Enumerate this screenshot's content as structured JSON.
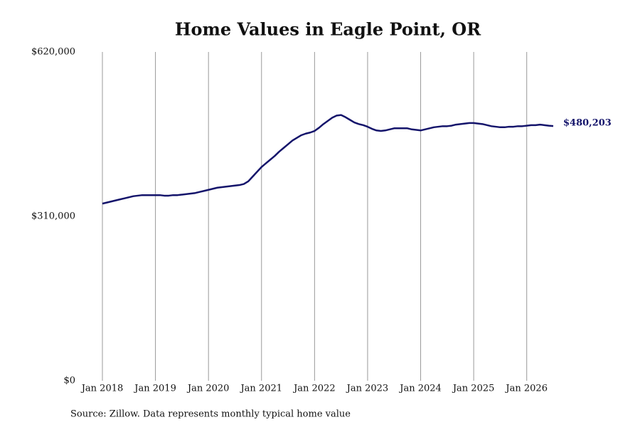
{
  "chart_data": {
    "type": "line",
    "title": "Home Values in Eagle Point, OR",
    "source": "Source: Zillow. Data represents monthly typical home value",
    "x": [
      "2018-01",
      "2018-02",
      "2018-03",
      "2018-04",
      "2018-05",
      "2018-06",
      "2018-07",
      "2018-08",
      "2018-09",
      "2018-10",
      "2018-11",
      "2018-12",
      "2019-01",
      "2019-02",
      "2019-03",
      "2019-04",
      "2019-05",
      "2019-06",
      "2019-07",
      "2019-08",
      "2019-09",
      "2019-10",
      "2019-11",
      "2019-12",
      "2020-01",
      "2020-02",
      "2020-03",
      "2020-04",
      "2020-05",
      "2020-06",
      "2020-07",
      "2020-08",
      "2020-09",
      "2020-10",
      "2020-11",
      "2020-12",
      "2021-01",
      "2021-02",
      "2021-03",
      "2021-04",
      "2021-05",
      "2021-06",
      "2021-07",
      "2021-08",
      "2021-09",
      "2021-10",
      "2021-11",
      "2021-12",
      "2022-01",
      "2022-02",
      "2022-03",
      "2022-04",
      "2022-05",
      "2022-06",
      "2022-07",
      "2022-08",
      "2022-09",
      "2022-10",
      "2022-11",
      "2022-12",
      "2023-01",
      "2023-02",
      "2023-03",
      "2023-04",
      "2023-05",
      "2023-06",
      "2023-07",
      "2023-08",
      "2023-09",
      "2023-10",
      "2023-11",
      "2023-12",
      "2024-01",
      "2024-02",
      "2024-03",
      "2024-04",
      "2024-05",
      "2024-06",
      "2024-07",
      "2024-08",
      "2024-09",
      "2024-10",
      "2024-11",
      "2024-12",
      "2025-01",
      "2025-02",
      "2025-03",
      "2025-04",
      "2025-05",
      "2025-06",
      "2025-07",
      "2025-08",
      "2025-09",
      "2025-10",
      "2025-11",
      "2025-12",
      "2026-01",
      "2026-02",
      "2026-03",
      "2026-04",
      "2026-05",
      "2026-06",
      "2026-07"
    ],
    "series": [
      {
        "name": "Home value",
        "color": "#14146b",
        "values": [
          334000,
          336000,
          338000,
          340000,
          342000,
          344000,
          346000,
          348000,
          349000,
          350000,
          350000,
          350000,
          350000,
          350000,
          349000,
          349000,
          350000,
          350000,
          351000,
          352000,
          353000,
          354000,
          356000,
          358000,
          360000,
          362000,
          364000,
          365000,
          366000,
          367000,
          368000,
          369000,
          371000,
          376000,
          385000,
          394000,
          403000,
          410000,
          417000,
          424000,
          432000,
          439000,
          446000,
          453000,
          458000,
          463000,
          466000,
          468000,
          471000,
          477000,
          484000,
          490000,
          496000,
          500000,
          501000,
          497000,
          492000,
          487000,
          484000,
          482000,
          479000,
          475000,
          472000,
          471000,
          472000,
          474000,
          476000,
          476000,
          476000,
          476000,
          474000,
          473000,
          472000,
          474000,
          476000,
          478000,
          479000,
          480000,
          480000,
          481000,
          483000,
          484000,
          485000,
          486000,
          486000,
          485000,
          484000,
          482000,
          480000,
          479000,
          478000,
          478000,
          479000,
          479000,
          480000,
          480000,
          481000,
          482000,
          482000,
          483000,
          482000,
          481000,
          480203
        ]
      }
    ],
    "last_value_label": "$480,203",
    "xlim": [
      "2018-01",
      "2026-07"
    ],
    "xticks": [
      {
        "value": "2018-01",
        "label": "Jan 2018"
      },
      {
        "value": "2019-01",
        "label": "Jan 2019"
      },
      {
        "value": "2020-01",
        "label": "Jan 2020"
      },
      {
        "value": "2021-01",
        "label": "Jan 2021"
      },
      {
        "value": "2022-01",
        "label": "Jan 2022"
      },
      {
        "value": "2023-01",
        "label": "Jan 2023"
      },
      {
        "value": "2024-01",
        "label": "Jan 2024"
      },
      {
        "value": "2025-01",
        "label": "Jan 2025"
      },
      {
        "value": "2026-01",
        "label": "Jan 2026"
      }
    ],
    "ylim": [
      0,
      620000
    ],
    "yticks": [
      {
        "value": 0,
        "label": "$0"
      },
      {
        "value": 310000,
        "label": "$310,000"
      },
      {
        "value": 620000,
        "label": "$620,000"
      }
    ],
    "grid": "x"
  }
}
